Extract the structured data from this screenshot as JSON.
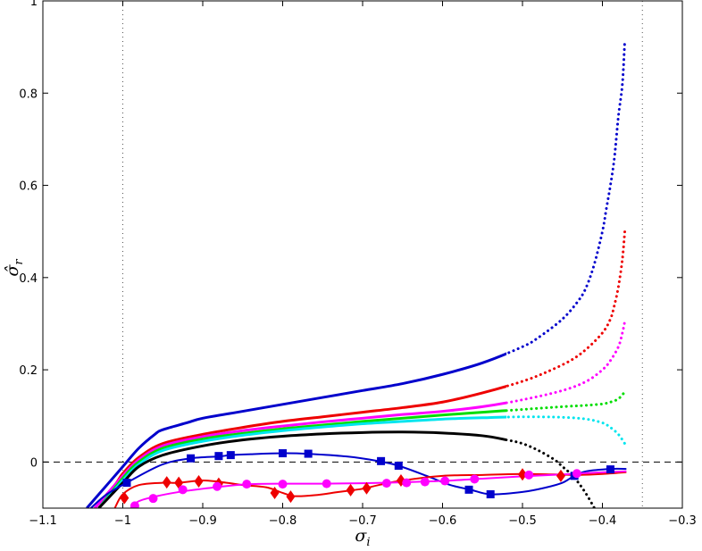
{
  "chart_data": {
    "type": "line",
    "xlabel": "σ_i",
    "ylabel": "σ̂_r",
    "xlim": [
      -1.1,
      -0.3
    ],
    "ylim": [
      -0.1,
      1.0
    ],
    "grid": false,
    "xticks": [
      -1.1,
      -1.0,
      -0.9,
      -0.8,
      -0.7,
      -0.6,
      -0.5,
      -0.4,
      -0.3
    ],
    "xtick_labels": [
      "−1.1",
      "−1",
      "−0.9",
      "−0.8",
      "−0.7",
      "−0.6",
      "−0.5",
      "−0.4",
      "−0.3"
    ],
    "yticks": [
      0,
      0.2,
      0.4,
      0.6,
      0.8,
      1.0
    ],
    "ytick_labels": [
      "0",
      "0.2",
      "0.4",
      "0.6",
      "0.8",
      "1"
    ],
    "reference_lines": [
      {
        "orientation": "horizontal",
        "value": 0.0,
        "style": "dashed",
        "color": "#000000"
      },
      {
        "orientation": "vertical",
        "value": -1.0,
        "style": "dotted",
        "color": "#555555"
      },
      {
        "orientation": "vertical",
        "value": -0.35,
        "style": "dotted",
        "color": "#555555"
      }
    ],
    "series": [
      {
        "color": "#0000cc",
        "style": "solid-then-dotted",
        "x": [
          -1.045,
          -1.02,
          -1.0,
          -0.98,
          -0.96,
          -0.95,
          -0.92,
          -0.9,
          -0.85,
          -0.8,
          -0.75,
          -0.7,
          -0.65,
          -0.6,
          -0.55,
          -0.5,
          -0.48,
          -0.45,
          -0.43,
          -0.42,
          -0.41,
          -0.4,
          -0.395,
          -0.39,
          -0.385,
          -0.38,
          -0.375,
          -0.372
        ],
        "y": [
          -0.1,
          -0.05,
          -0.01,
          0.03,
          0.06,
          0.07,
          0.085,
          0.095,
          0.11,
          0.125,
          0.14,
          0.155,
          0.17,
          0.19,
          0.215,
          0.25,
          0.27,
          0.31,
          0.35,
          0.38,
          0.43,
          0.5,
          0.55,
          0.6,
          0.66,
          0.75,
          0.82,
          0.915
        ]
      },
      {
        "color": "#ee0000",
        "style": "solid-then-dotted",
        "x": [
          -1.035,
          -1.01,
          -1.0,
          -0.98,
          -0.95,
          -0.9,
          -0.85,
          -0.8,
          -0.75,
          -0.7,
          -0.65,
          -0.6,
          -0.55,
          -0.5,
          -0.47,
          -0.44,
          -0.42,
          -0.4,
          -0.39,
          -0.385,
          -0.38,
          -0.375,
          -0.372
        ],
        "y": [
          -0.1,
          -0.05,
          -0.025,
          0.01,
          0.04,
          0.06,
          0.075,
          0.088,
          0.098,
          0.108,
          0.118,
          0.13,
          0.15,
          0.175,
          0.195,
          0.22,
          0.245,
          0.28,
          0.31,
          0.34,
          0.38,
          0.44,
          0.5
        ]
      },
      {
        "color": "#ff00ff",
        "style": "solid-then-dotted",
        "x": [
          -1.035,
          -1.0,
          -0.98,
          -0.95,
          -0.9,
          -0.85,
          -0.8,
          -0.75,
          -0.7,
          -0.65,
          -0.6,
          -0.55,
          -0.5,
          -0.45,
          -0.42,
          -0.4,
          -0.39,
          -0.38,
          -0.375,
          -0.372
        ],
        "y": [
          -0.1,
          -0.03,
          0.005,
          0.035,
          0.055,
          0.068,
          0.078,
          0.087,
          0.095,
          0.103,
          0.11,
          0.12,
          0.135,
          0.155,
          0.175,
          0.2,
          0.22,
          0.25,
          0.28,
          0.305
        ]
      },
      {
        "color": "#00dd00",
        "style": "solid-then-dotted",
        "x": [
          -1.03,
          -1.0,
          -0.98,
          -0.95,
          -0.9,
          -0.85,
          -0.8,
          -0.75,
          -0.7,
          -0.65,
          -0.6,
          -0.55,
          -0.5,
          -0.45,
          -0.42,
          -0.4,
          -0.39,
          -0.38,
          -0.372
        ],
        "y": [
          -0.1,
          -0.035,
          0.0,
          0.03,
          0.05,
          0.062,
          0.072,
          0.08,
          0.088,
          0.095,
          0.102,
          0.108,
          0.114,
          0.12,
          0.123,
          0.126,
          0.13,
          0.137,
          0.152
        ]
      },
      {
        "color": "#00e5ee",
        "style": "solid-then-dotted",
        "x": [
          -1.03,
          -1.0,
          -0.98,
          -0.95,
          -0.9,
          -0.85,
          -0.8,
          -0.75,
          -0.7,
          -0.65,
          -0.6,
          -0.55,
          -0.5,
          -0.45,
          -0.42,
          -0.4,
          -0.39,
          -0.38,
          -0.372
        ],
        "y": [
          -0.1,
          -0.04,
          -0.005,
          0.025,
          0.045,
          0.058,
          0.068,
          0.076,
          0.083,
          0.088,
          0.093,
          0.096,
          0.098,
          0.097,
          0.093,
          0.085,
          0.075,
          0.06,
          0.04
        ]
      },
      {
        "color": "#000000",
        "style": "solid-then-dotted",
        "x": [
          -1.03,
          -1.0,
          -0.98,
          -0.95,
          -0.9,
          -0.85,
          -0.8,
          -0.75,
          -0.7,
          -0.65,
          -0.6,
          -0.55,
          -0.52,
          -0.5,
          -0.48,
          -0.46,
          -0.45,
          -0.44,
          -0.43,
          -0.42,
          -0.41
        ],
        "y": [
          -0.1,
          -0.045,
          -0.01,
          0.015,
          0.035,
          0.048,
          0.056,
          0.061,
          0.064,
          0.065,
          0.063,
          0.057,
          0.048,
          0.04,
          0.025,
          0.005,
          -0.01,
          -0.025,
          -0.045,
          -0.07,
          -0.1
        ]
      },
      {
        "color": "#0000cc",
        "style": "solid",
        "marker": "square",
        "x": [
          -1.04,
          -1.02,
          -0.99,
          -0.95,
          -0.915,
          -0.88,
          -0.865,
          -0.84,
          -0.8,
          -0.77,
          -0.72,
          -0.68,
          -0.655,
          -0.62,
          -0.59,
          -0.565,
          -0.54,
          -0.5,
          -0.47,
          -0.45,
          -0.435,
          -0.42,
          -0.39,
          -0.37
        ],
        "y": [
          -0.1,
          -0.07,
          -0.04,
          -0.005,
          0.008,
          0.012,
          0.015,
          0.017,
          0.019,
          0.018,
          0.012,
          0.002,
          -0.008,
          -0.03,
          -0.05,
          -0.06,
          -0.07,
          -0.065,
          -0.055,
          -0.045,
          -0.03,
          -0.02,
          -0.015,
          -0.015
        ],
        "markers_x": [
          -0.995,
          -0.915,
          -0.88,
          -0.865,
          -0.8,
          -0.768,
          -0.677,
          -0.655,
          -0.567,
          -0.54,
          -0.435,
          -0.39
        ],
        "markers_y": [
          -0.045,
          0.008,
          0.013,
          0.015,
          0.019,
          0.018,
          0.002,
          -0.008,
          -0.06,
          -0.07,
          -0.03,
          -0.016
        ]
      },
      {
        "color": "#ee0000",
        "style": "solid",
        "marker": "diamond",
        "x": [
          -1.01,
          -1.0,
          -0.98,
          -0.95,
          -0.93,
          -0.9,
          -0.87,
          -0.85,
          -0.82,
          -0.8,
          -0.785,
          -0.76,
          -0.73,
          -0.7,
          -0.68,
          -0.65,
          -0.6,
          -0.55,
          -0.5,
          -0.46,
          -0.43,
          -0.4,
          -0.37
        ],
        "y": [
          -0.1,
          -0.07,
          -0.05,
          -0.045,
          -0.045,
          -0.04,
          -0.045,
          -0.05,
          -0.055,
          -0.067,
          -0.074,
          -0.072,
          -0.065,
          -0.058,
          -0.05,
          -0.04,
          -0.03,
          -0.028,
          -0.026,
          -0.027,
          -0.028,
          -0.026,
          -0.022
        ],
        "markers_x": [
          -0.998,
          -0.945,
          -0.93,
          -0.905,
          -0.88,
          -0.81,
          -0.79,
          -0.715,
          -0.695,
          -0.652,
          -0.5,
          -0.452
        ],
        "markers_y": [
          -0.078,
          -0.044,
          -0.045,
          -0.042,
          -0.047,
          -0.067,
          -0.075,
          -0.061,
          -0.057,
          -0.04,
          -0.027,
          -0.03
        ]
      },
      {
        "color": "#ff00ff",
        "style": "solid",
        "marker": "circle",
        "x": [
          -0.99,
          -0.98,
          -0.96,
          -0.93,
          -0.9,
          -0.87,
          -0.84,
          -0.8,
          -0.75,
          -0.7,
          -0.65,
          -0.6,
          -0.55,
          -0.5,
          -0.45,
          -0.42,
          -0.37
        ],
        "y": [
          -0.1,
          -0.085,
          -0.075,
          -0.065,
          -0.058,
          -0.052,
          -0.048,
          -0.047,
          -0.047,
          -0.046,
          -0.044,
          -0.041,
          -0.036,
          -0.031,
          -0.027,
          -0.024,
          -0.02
        ],
        "markers_x": [
          -0.985,
          -0.962,
          -0.925,
          -0.882,
          -0.845,
          -0.8,
          -0.745,
          -0.67,
          -0.645,
          -0.622,
          -0.597,
          -0.56,
          -0.492,
          -0.432
        ],
        "markers_y": [
          -0.095,
          -0.079,
          -0.06,
          -0.053,
          -0.048,
          -0.048,
          -0.047,
          -0.046,
          -0.045,
          -0.043,
          -0.041,
          -0.037,
          -0.028,
          -0.025
        ]
      }
    ]
  }
}
